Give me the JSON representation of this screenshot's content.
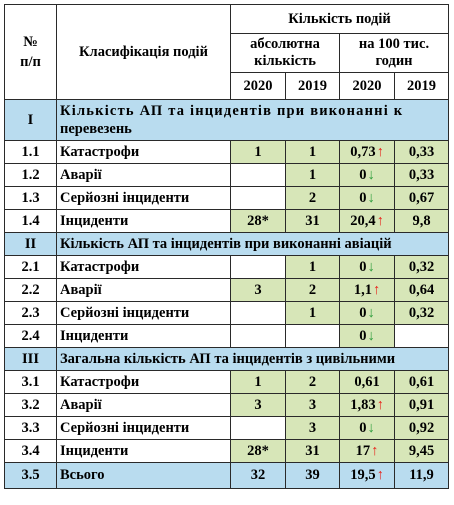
{
  "header": {
    "num_col": "№\nп/п",
    "num_line1": "№",
    "num_line2": "п/п",
    "class_col": "Класифікація подій",
    "count_group": "Кількість подій",
    "abs_line1": "абсолютна",
    "abs_line2": "кількість",
    "per_line1": "на 100 тис.",
    "per_line2": "годин",
    "y2020": "2020",
    "y2019": "2019"
  },
  "sections": [
    {
      "id": "I",
      "title": "Кількість АП та інцидентів при виконанні к перевезень",
      "title_line1": "Кількість АП та інцидентів при виконанні к",
      "title_line2": "перевезень",
      "rows": [
        {
          "num": "1.1",
          "label": "Катастрофи",
          "abs2020": "1",
          "abs2019": "1",
          "per2020": "0,73",
          "trend": "up",
          "per2019": "0,33"
        },
        {
          "num": "1.2",
          "label": "Аварії",
          "abs2020": "",
          "abs2019": "1",
          "per2020": "0",
          "trend": "down",
          "per2019": "0,33"
        },
        {
          "num": "1.3",
          "label": "Серйозні інциденти",
          "abs2020": "",
          "abs2019": "2",
          "per2020": "0",
          "trend": "down",
          "per2019": "0,67"
        },
        {
          "num": "1.4",
          "label": "Інциденти",
          "abs2020": "28*",
          "abs2019": "31",
          "per2020": "20,4",
          "trend": "up",
          "per2019": "9,8"
        }
      ]
    },
    {
      "id": "II",
      "title": "Кількість АП та інцидентів при виконанні авіацій",
      "rows": [
        {
          "num": "2.1",
          "label": "Катастрофи",
          "abs2020": "",
          "abs2019": "1",
          "per2020": "0",
          "trend": "down",
          "per2019": "0,32"
        },
        {
          "num": "2.2",
          "label": "Аварії",
          "abs2020": "3",
          "abs2019": "2",
          "per2020": "1,1",
          "trend": "up",
          "per2019": "0,64"
        },
        {
          "num": "2.3",
          "label": "Серйозні інциденти",
          "abs2020": "",
          "abs2019": "1",
          "per2020": "0",
          "trend": "down",
          "per2019": "0,32"
        },
        {
          "num": "2.4",
          "label": "Інциденти",
          "abs2020": "",
          "abs2019": "",
          "per2020": "0",
          "trend": "down",
          "per2019": ""
        }
      ]
    },
    {
      "id": "III",
      "title": "Загальна кількість АП та інцидентів з цивільними",
      "rows": [
        {
          "num": "3.1",
          "label": "Катастрофи",
          "abs2020": "1",
          "abs2019": "2",
          "per2020": "0,61",
          "trend": "",
          "per2019": "0,61"
        },
        {
          "num": "3.2",
          "label": "Аварії",
          "abs2020": "3",
          "abs2019": "3",
          "per2020": "1,83",
          "trend": "up",
          "per2019": "0,91"
        },
        {
          "num": "3.3",
          "label": "Серйозні інциденти",
          "abs2020": "",
          "abs2019": "3",
          "per2020": "0",
          "trend": "down",
          "per2019": "0,92"
        },
        {
          "num": "3.4",
          "label": "Інциденти",
          "abs2020": "28*",
          "abs2019": "31",
          "per2020": "17",
          "trend": "up",
          "per2019": "9,45"
        }
      ]
    }
  ],
  "total": {
    "num": "3.5",
    "label": "Всього",
    "abs2020": "32",
    "abs2019": "39",
    "per2020": "19,5",
    "trend": "up",
    "per2019": "11,9"
  },
  "colors": {
    "section_bg": "#b9dcef",
    "green_cell": "#d7e6b8",
    "arrow_up": "#e8231b",
    "arrow_down": "#2e9c3c"
  },
  "icons": {
    "up": "arrow-up-icon",
    "down": "arrow-down-icon"
  }
}
